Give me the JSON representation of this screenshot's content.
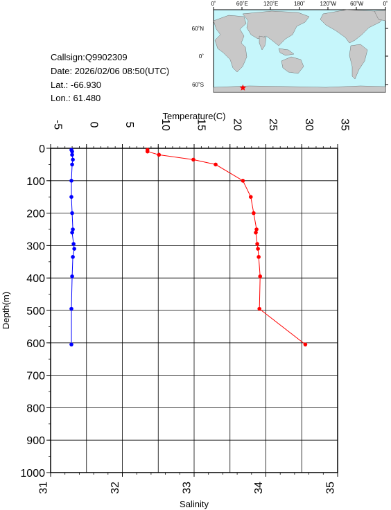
{
  "station": {
    "callsign_text": "Callsign:Q9902309",
    "date_text": "Date:  2026/02/06 08:50(UTC)",
    "lat_text": "Lat.:  -66.930",
    "lon_text": "Lon.:   61.480"
  },
  "inset_map": {
    "top_labels": [
      "0˚",
      "60˚E",
      "120˚E",
      "180˚",
      "120˚W",
      "60˚W",
      "0˚"
    ],
    "lat_labels": [
      "60˚N",
      "0˚",
      "60˚S"
    ],
    "colors": {
      "ocean": "#c6f6fb",
      "land": "#c8c8c8",
      "marker": "#ff0000"
    },
    "marker": {
      "lat": -66.93,
      "lon": 61.48,
      "symbol": "star"
    }
  },
  "chart_data": {
    "type": "line",
    "ylabel": "Depth(m)",
    "y_ticks": [
      0,
      100,
      200,
      300,
      400,
      500,
      600,
      700,
      800,
      900,
      1000
    ],
    "ylim": [
      1000,
      0
    ],
    "y_inverted": true,
    "grid": true,
    "top_axis": {
      "label": "Temperature(C)",
      "range": [
        -5,
        35
      ],
      "ticks": [
        -5,
        0,
        5,
        10,
        15,
        20,
        25,
        30,
        35
      ]
    },
    "bottom_axis": {
      "label": "Salinity",
      "range": [
        31,
        35
      ],
      "ticks": [
        31,
        32,
        33,
        34,
        35
      ]
    },
    "series": [
      {
        "axis": "temperature",
        "color": "#ff0000",
        "depth": [
          5,
          10,
          20,
          35,
          50,
          100,
          150,
          200,
          250,
          260,
          295,
          310,
          335,
          395,
          495,
          605
        ],
        "values": [
          8.5,
          8.5,
          10.1,
          14.9,
          18.0,
          21.8,
          22.9,
          23.3,
          23.7,
          23.6,
          23.8,
          23.9,
          24.0,
          24.2,
          24.1,
          30.5
        ]
      },
      {
        "axis": "salinity",
        "color": "#0000ff",
        "depth": [
          5,
          10,
          20,
          35,
          50,
          100,
          150,
          200,
          250,
          260,
          295,
          310,
          335,
          395,
          495,
          605
        ],
        "values": [
          31.29,
          31.3,
          31.3,
          31.31,
          31.3,
          31.29,
          31.29,
          31.3,
          31.31,
          31.3,
          31.32,
          31.33,
          31.31,
          31.3,
          31.29,
          31.29
        ]
      }
    ]
  }
}
